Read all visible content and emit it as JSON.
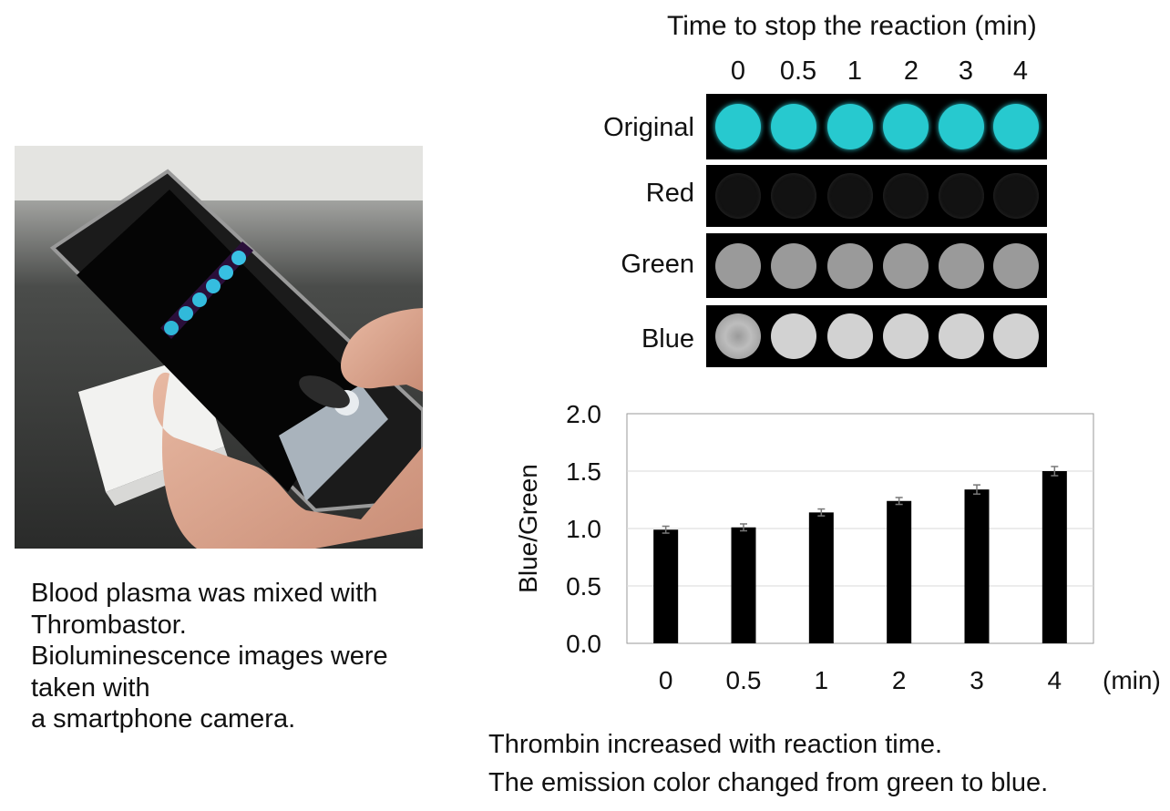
{
  "image_panel": {
    "title": "Time to stop the reaction (min)",
    "time_labels": [
      "0",
      "0.5",
      "1",
      "2",
      "3",
      "4"
    ],
    "rows": [
      {
        "label": "Original",
        "color": "#27c9cf"
      },
      {
        "label": "Red",
        "color": "#1a1a1a"
      },
      {
        "label": "Green",
        "color": "#9a9a9a"
      },
      {
        "label": "Blue",
        "color": "#d2d2d2"
      }
    ]
  },
  "left_caption": {
    "line1": "Blood plasma was mixed with",
    "line2": "Thrombastor.",
    "line3": "Bioluminescence images were",
    "line4": "taken with",
    "line5": "a smartphone camera."
  },
  "bottom_caption": {
    "line1": "Thrombin increased with reaction time.",
    "line2": "The emission color changed from green to blue."
  },
  "chart_data": {
    "type": "bar",
    "categories": [
      "0",
      "0.5",
      "1",
      "2",
      "3",
      "4"
    ],
    "values": [
      0.99,
      1.01,
      1.14,
      1.24,
      1.34,
      1.5
    ],
    "errors": [
      0.03,
      0.03,
      0.03,
      0.03,
      0.04,
      0.04
    ],
    "xlabel": "(min)",
    "ylabel": "Blue/Green",
    "ylim": [
      0,
      2.0
    ],
    "yticks": [
      "0.0",
      "0.5",
      "1.0",
      "1.5",
      "2.0"
    ],
    "grid": true,
    "bar_color": "#000000"
  }
}
